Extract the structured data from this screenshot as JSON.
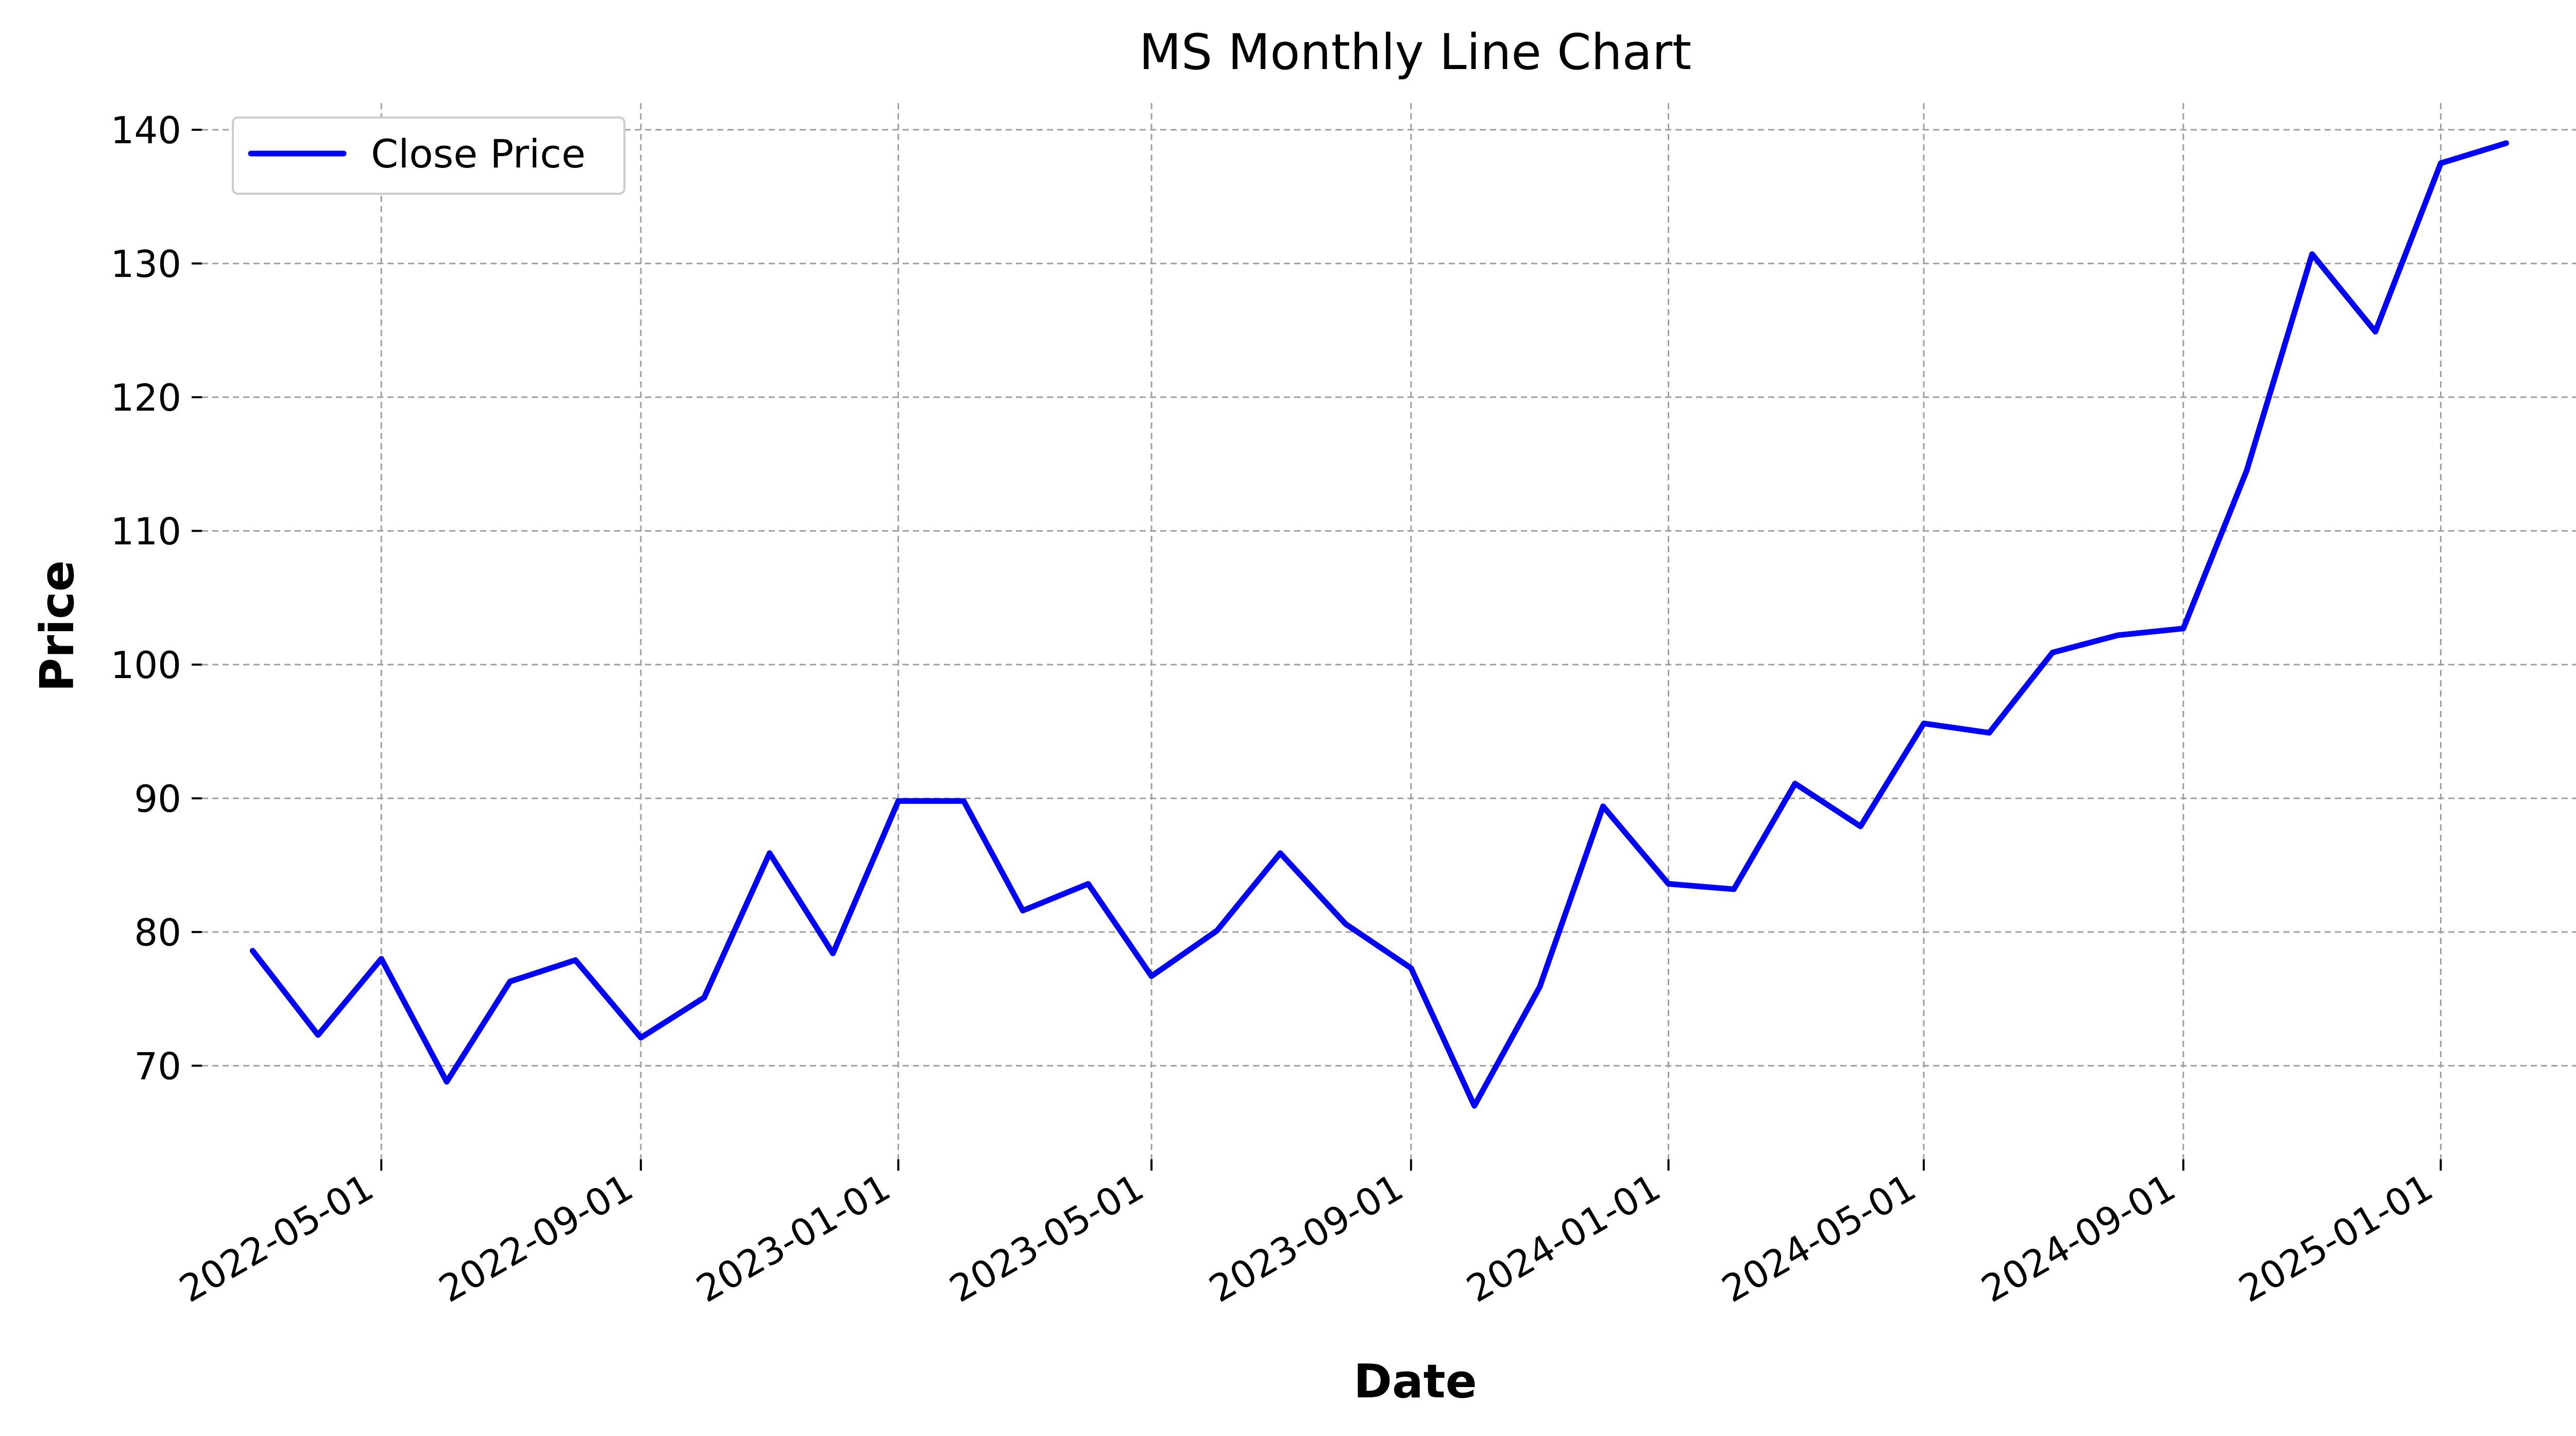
{
  "chart_data": {
    "type": "line",
    "title": "MS Monthly Line Chart",
    "xlabel": "Date",
    "ylabel": "Price",
    "ylim": [
      63,
      142
    ],
    "xlim": [
      "2022-02-05",
      "2025-03-31"
    ],
    "grid": true,
    "legend_position": "top-left",
    "y_ticks": [
      70,
      80,
      90,
      100,
      110,
      120,
      130,
      140
    ],
    "x_ticks": [
      "2022-05-01",
      "2022-09-01",
      "2023-01-01",
      "2023-05-01",
      "2023-09-01",
      "2024-01-01",
      "2024-05-01",
      "2024-09-01",
      "2025-01-01"
    ],
    "series": [
      {
        "name": "Close Price",
        "color": "#0000ff",
        "x": [
          "2022-03-01",
          "2022-04-01",
          "2022-05-01",
          "2022-06-01",
          "2022-07-01",
          "2022-08-01",
          "2022-09-01",
          "2022-10-01",
          "2022-11-01",
          "2022-12-01",
          "2023-01-01",
          "2023-02-01",
          "2023-03-01",
          "2023-04-01",
          "2023-05-01",
          "2023-06-01",
          "2023-07-01",
          "2023-08-01",
          "2023-09-01",
          "2023-10-01",
          "2023-11-01",
          "2023-12-01",
          "2024-01-01",
          "2024-02-01",
          "2024-03-01",
          "2024-04-01",
          "2024-05-01",
          "2024-06-01",
          "2024-07-01",
          "2024-08-01",
          "2024-09-01",
          "2024-10-01",
          "2024-11-01",
          "2024-12-01",
          "2025-01-01",
          "2025-02-01"
        ],
        "values": [
          78.6,
          72.3,
          78.0,
          68.8,
          76.3,
          77.9,
          72.1,
          75.1,
          85.9,
          78.4,
          89.8,
          89.8,
          81.6,
          83.6,
          76.7,
          80.1,
          85.9,
          80.6,
          77.3,
          67.0,
          75.9,
          89.4,
          83.6,
          83.2,
          91.1,
          87.9,
          95.6,
          94.9,
          100.9,
          102.2,
          102.7,
          114.5,
          130.7,
          124.9,
          137.5,
          139.0
        ]
      }
    ]
  }
}
